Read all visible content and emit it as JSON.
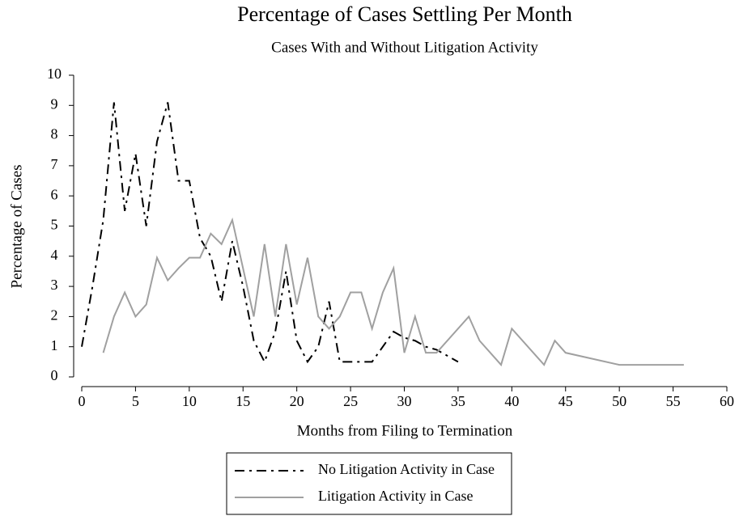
{
  "chart_data": {
    "type": "line",
    "title": "Percentage of Cases Settling Per Month",
    "subtitle": "Cases With and Without Litigation Activity",
    "x_label": "Months from Filing to Termination",
    "y_label": "Percentage of Cases",
    "xlim": [
      0,
      60
    ],
    "xticks": [
      0,
      5,
      10,
      15,
      20,
      25,
      30,
      35,
      40,
      45,
      50,
      55,
      60
    ],
    "ylim": [
      0,
      10
    ],
    "yticks": [
      0,
      1,
      2,
      3,
      4,
      5,
      6,
      7,
      8,
      9,
      10
    ],
    "grid": false,
    "legend": "bottom",
    "series": [
      {
        "name": "No Litigation Activity in Case",
        "color": "#000000",
        "line_style": "dash-dot",
        "x": [
          0,
          1,
          2,
          3,
          4,
          5,
          6,
          7,
          8,
          9,
          10,
          11,
          12,
          13,
          14,
          15,
          16,
          17,
          18,
          19,
          20,
          21,
          22,
          23,
          24,
          25,
          26,
          27,
          28,
          29,
          30,
          31,
          32,
          33,
          34,
          35
        ],
        "values": [
          1.0,
          3.0,
          5.2,
          9.1,
          5.5,
          7.4,
          5.0,
          7.8,
          9.1,
          6.5,
          6.5,
          4.6,
          4.0,
          2.5,
          4.5,
          3.0,
          1.2,
          0.5,
          1.5,
          3.5,
          1.2,
          0.5,
          1.0,
          2.5,
          0.5,
          0.5,
          0.5,
          0.5,
          1.0,
          1.5,
          1.3,
          1.2,
          1.0,
          0.9,
          0.7,
          0.5
        ]
      },
      {
        "name": "Litigation Activity in Case",
        "color": "#a0a0a0",
        "line_style": "solid",
        "x": [
          2,
          3,
          4,
          5,
          6,
          7,
          8,
          9,
          10,
          11,
          12,
          13,
          14,
          15,
          16,
          17,
          18,
          19,
          20,
          21,
          22,
          23,
          24,
          25,
          26,
          27,
          28,
          29,
          30,
          31,
          32,
          33,
          36,
          37,
          39,
          40,
          43,
          44,
          45,
          50,
          56
        ],
        "values": [
          0.8,
          2.0,
          2.8,
          2.0,
          2.4,
          3.95,
          3.2,
          3.6,
          3.95,
          3.95,
          4.75,
          4.4,
          5.2,
          3.6,
          2.0,
          4.4,
          2.0,
          4.4,
          2.4,
          3.95,
          2.0,
          1.6,
          2.0,
          2.8,
          2.8,
          1.6,
          2.8,
          3.6,
          0.8,
          2.0,
          0.8,
          0.8,
          2.0,
          1.2,
          0.4,
          1.6,
          0.4,
          1.2,
          0.8,
          0.4,
          0.4
        ]
      }
    ]
  }
}
